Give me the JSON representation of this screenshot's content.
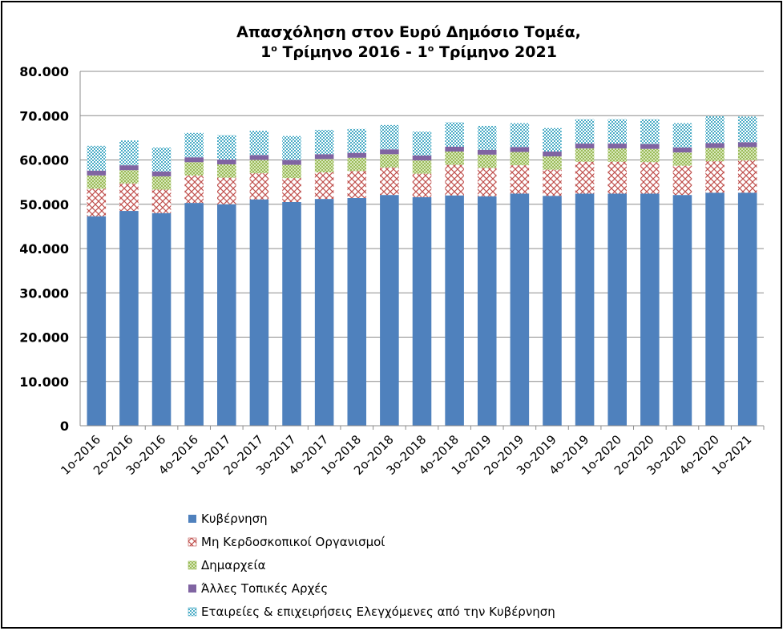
{
  "chart_data": {
    "type": "bar",
    "stacked": true,
    "title_line1": "Απασχόληση στον Ευρύ Δημόσιο Τομέα,",
    "title_line2_parts": [
      "1",
      "ο",
      " Τρίμηνο 2016 - 1",
      "ο",
      " Τρίμηνο 2021"
    ],
    "xlabel": "",
    "ylabel": "",
    "ylim": [
      0,
      80000
    ],
    "yticks": [
      {
        "value": 0,
        "label": "0"
      },
      {
        "value": 10000,
        "label": "10.000"
      },
      {
        "value": 20000,
        "label": "20.000"
      },
      {
        "value": 30000,
        "label": "30.000"
      },
      {
        "value": 40000,
        "label": "40.000"
      },
      {
        "value": 50000,
        "label": "50.000"
      },
      {
        "value": 60000,
        "label": "60.000"
      },
      {
        "value": 70000,
        "label": "70.000"
      },
      {
        "value": 80000,
        "label": "80.000"
      }
    ],
    "grid": true,
    "legend_position": "bottom",
    "categories": [
      "1ο-2016",
      "2ο-2016",
      "3ο-2016",
      "4ο-2016",
      "1ο-2017",
      "2ο-2017",
      "3ο-2017",
      "4ο-2017",
      "1ο-2018",
      "2ο-2018",
      "3ο-2018",
      "4ο-2018",
      "1ο-2019",
      "2ο-2019",
      "3ο-2019",
      "4ο-2019",
      "1ο-2020",
      "2ο-2020",
      "3ο-2020",
      "4ο-2020",
      "1ο-2021"
    ],
    "series": [
      {
        "name": "Κυβέρνηση",
        "color": "#4F81BD",
        "pattern": "solid",
        "values": [
          47300,
          48500,
          48000,
          50300,
          50000,
          51100,
          50500,
          51200,
          51400,
          52100,
          51600,
          52000,
          51800,
          52400,
          51900,
          52400,
          52400,
          52400,
          52100,
          52600,
          52600
        ]
      },
      {
        "name": "Μη Κερδοσκοπικοί Οργανισμοί",
        "color": "#C0504D",
        "pattern": "crosshatch",
        "values": [
          6200,
          6200,
          5300,
          6200,
          6000,
          5900,
          5400,
          6000,
          6100,
          6200,
          5300,
          6900,
          6400,
          6400,
          5900,
          7200,
          7200,
          7100,
          6600,
          7100,
          7300
        ]
      },
      {
        "name": "Δημαρχεία",
        "color": "#9BBB59",
        "pattern": "dots",
        "values": [
          3000,
          3000,
          3000,
          3000,
          3000,
          3000,
          3000,
          3000,
          3000,
          3000,
          3000,
          3000,
          3000,
          3000,
          3000,
          3000,
          3000,
          3000,
          3000,
          3000,
          3000
        ]
      },
      {
        "name": "Άλλες Τοπικές Αρχές",
        "color": "#8064A2",
        "pattern": "solid",
        "values": [
          1100,
          1100,
          1100,
          1100,
          1100,
          1100,
          1100,
          1100,
          1100,
          1100,
          1100,
          1100,
          1100,
          1100,
          1100,
          1100,
          1100,
          1100,
          1100,
          1100,
          1100
        ]
      },
      {
        "name": "Εταιρείες & επιχειρήσεις Ελεγχόμενες από την Κυβέρνηση",
        "color": "#4BACC6",
        "pattern": "checker",
        "values": [
          5600,
          5600,
          5400,
          5500,
          5500,
          5500,
          5400,
          5500,
          5400,
          5500,
          5400,
          5500,
          5400,
          5400,
          5300,
          5500,
          5500,
          5600,
          5500,
          6100,
          5800
        ]
      }
    ]
  }
}
